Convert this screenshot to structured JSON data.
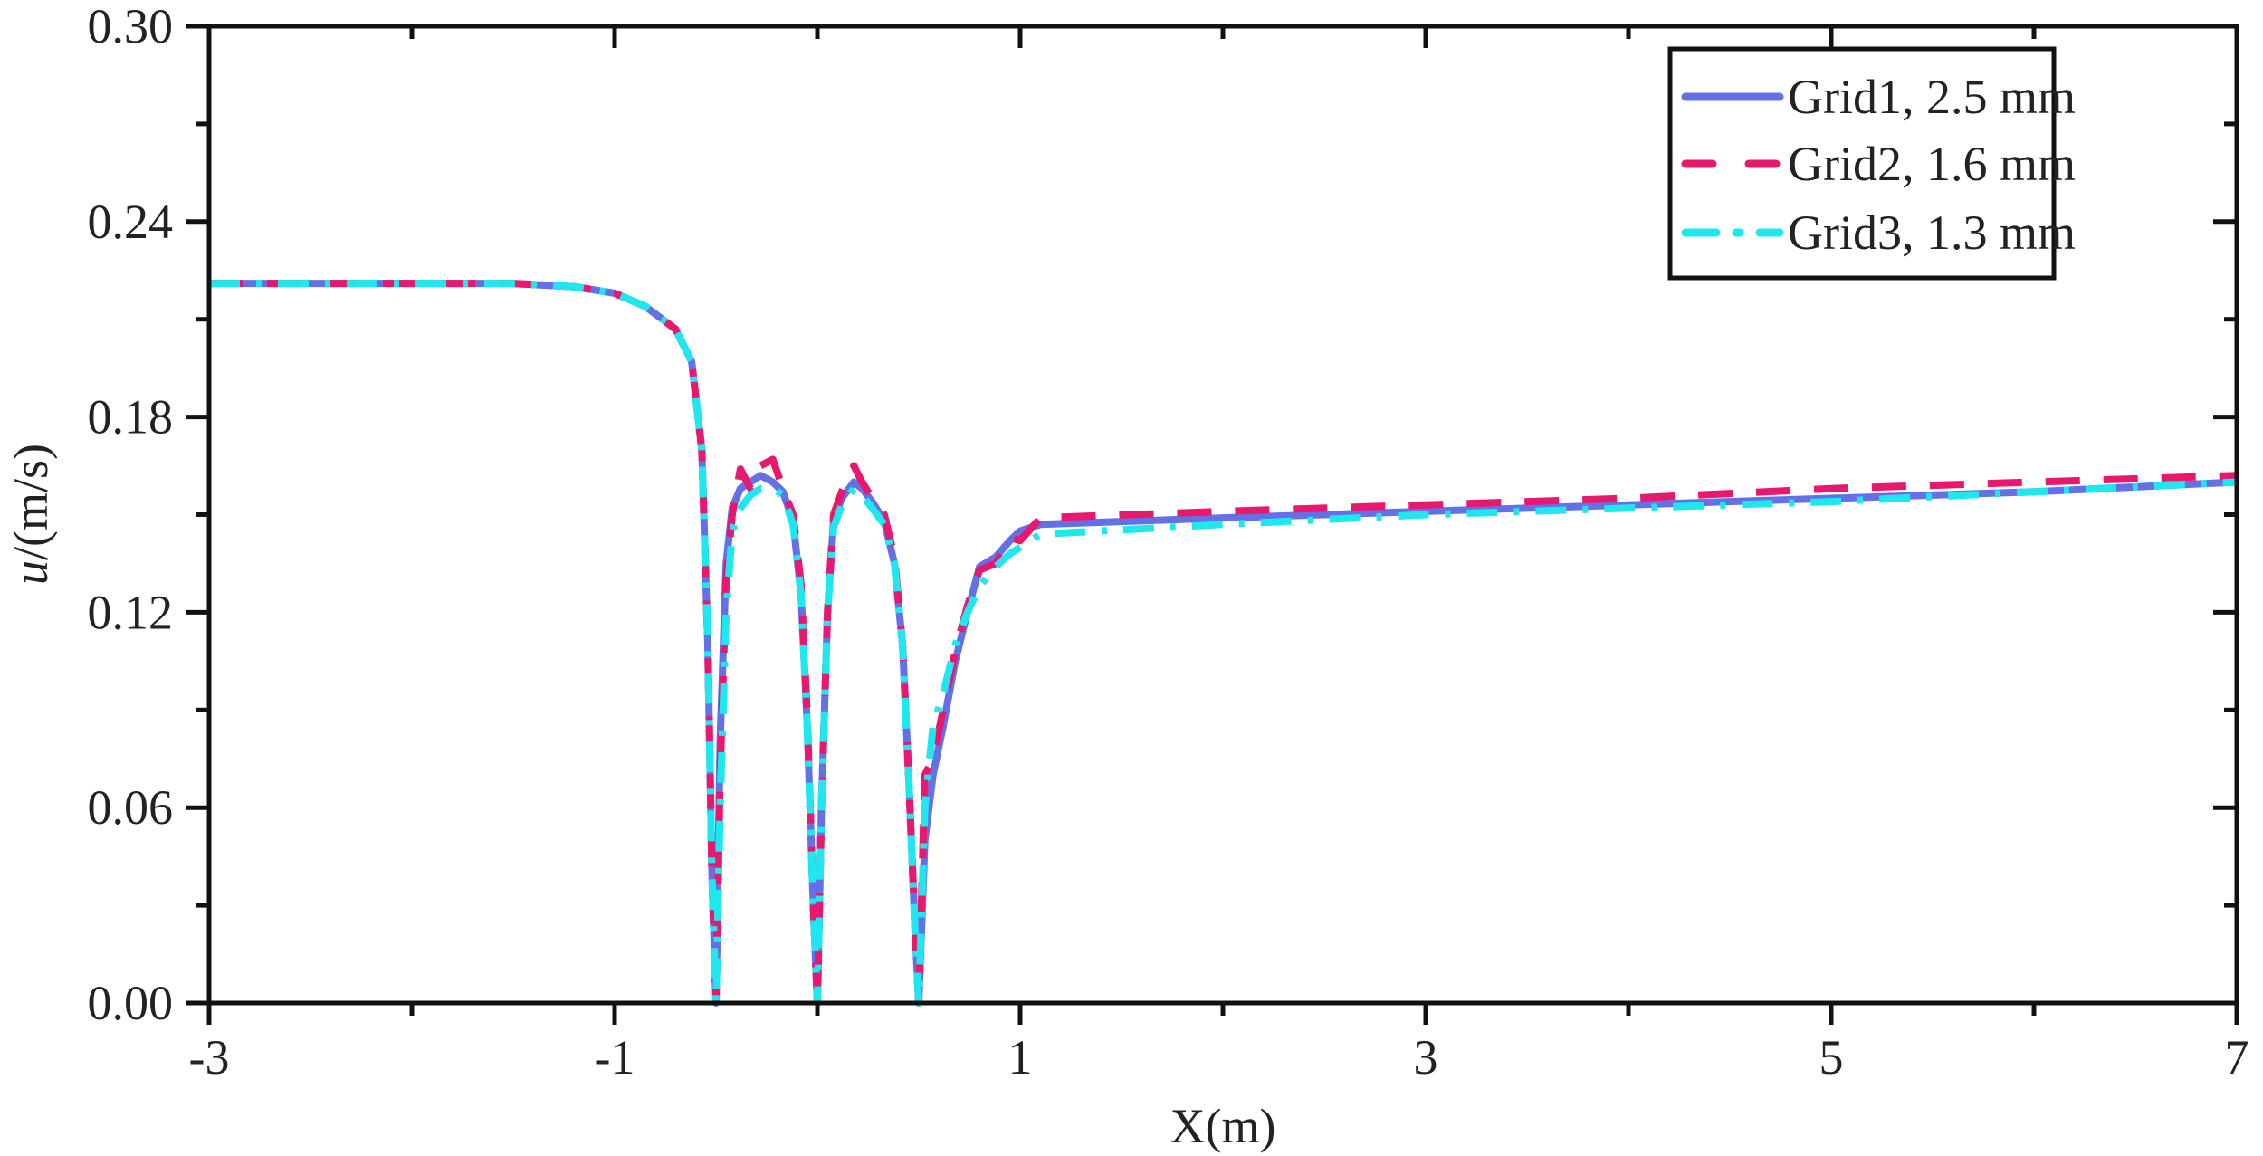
{
  "chart_data": {
    "type": "line",
    "xlabel": "X(m)",
    "ylabel_italic": "u",
    "ylabel_rest": "/(m/s)",
    "xlim": [
      -3,
      7
    ],
    "ylim": [
      0,
      0.3
    ],
    "xticks": [
      "-3",
      "-1",
      "1",
      "3",
      "5",
      "7"
    ],
    "yticks": [
      "0.00",
      "0.06",
      "0.12",
      "0.18",
      "0.24",
      "0.30"
    ],
    "grid": false,
    "legend_position": "top-right",
    "series": [
      {
        "name": "Grid1, 2.5 mm",
        "color": "#6470e6",
        "style": "solid",
        "x": [
          -3,
          -2,
          -1.5,
          -1.2,
          -1,
          -0.85,
          -0.7,
          -0.62,
          -0.57,
          -0.54,
          -0.52,
          -0.5,
          -0.48,
          -0.45,
          -0.42,
          -0.38,
          -0.33,
          -0.28,
          -0.22,
          -0.17,
          -0.12,
          -0.08,
          -0.05,
          -0.02,
          0,
          0.02,
          0.05,
          0.08,
          0.12,
          0.18,
          0.22,
          0.27,
          0.33,
          0.38,
          0.42,
          0.45,
          0.48,
          0.5,
          0.53,
          0.57,
          0.62,
          0.68,
          0.74,
          0.8,
          0.88,
          0.95,
          1.0,
          1.1,
          2,
          3,
          4,
          5,
          6,
          7
        ],
        "y": [
          0.221,
          0.221,
          0.221,
          0.22,
          0.218,
          0.214,
          0.207,
          0.197,
          0.17,
          0.11,
          0.04,
          0.0,
          0.08,
          0.135,
          0.152,
          0.158,
          0.16,
          0.162,
          0.16,
          0.157,
          0.148,
          0.125,
          0.085,
          0.03,
          0.0,
          0.06,
          0.12,
          0.148,
          0.155,
          0.16,
          0.158,
          0.154,
          0.148,
          0.135,
          0.11,
          0.07,
          0.025,
          0.0,
          0.05,
          0.07,
          0.085,
          0.105,
          0.12,
          0.134,
          0.137,
          0.142,
          0.145,
          0.147,
          0.149,
          0.151,
          0.153,
          0.155,
          0.157,
          0.16
        ]
      },
      {
        "name": "Grid2, 1.6 mm",
        "color": "#e8186e",
        "style": "dashed",
        "x": [
          -3,
          -2,
          -1.5,
          -1.2,
          -1,
          -0.85,
          -0.7,
          -0.62,
          -0.57,
          -0.54,
          -0.52,
          -0.5,
          -0.48,
          -0.45,
          -0.42,
          -0.38,
          -0.33,
          -0.28,
          -0.22,
          -0.17,
          -0.12,
          -0.08,
          -0.05,
          -0.02,
          0,
          0.02,
          0.05,
          0.08,
          0.12,
          0.18,
          0.22,
          0.27,
          0.33,
          0.38,
          0.42,
          0.45,
          0.48,
          0.5,
          0.53,
          0.57,
          0.62,
          0.68,
          0.74,
          0.8,
          0.88,
          0.95,
          1.0,
          1.1,
          2,
          3,
          4,
          5,
          6,
          7
        ],
        "y": [
          0.221,
          0.221,
          0.221,
          0.22,
          0.218,
          0.214,
          0.207,
          0.197,
          0.17,
          0.11,
          0.04,
          0.0,
          0.07,
          0.13,
          0.15,
          0.164,
          0.158,
          0.165,
          0.167,
          0.158,
          0.15,
          0.128,
          0.088,
          0.03,
          0.0,
          0.06,
          0.12,
          0.15,
          0.157,
          0.165,
          0.16,
          0.155,
          0.15,
          0.137,
          0.11,
          0.07,
          0.025,
          0.0,
          0.07,
          0.075,
          0.09,
          0.108,
          0.122,
          0.133,
          0.135,
          0.143,
          0.142,
          0.149,
          0.151,
          0.153,
          0.155,
          0.158,
          0.16,
          0.162
        ]
      },
      {
        "name": "Grid3, 1.3 mm",
        "color": "#1ee8ee",
        "style": "dash-dot",
        "x": [
          -3,
          -2,
          -1.5,
          -1.2,
          -1,
          -0.85,
          -0.7,
          -0.62,
          -0.57,
          -0.54,
          -0.52,
          -0.5,
          -0.48,
          -0.45,
          -0.42,
          -0.38,
          -0.33,
          -0.28,
          -0.22,
          -0.17,
          -0.12,
          -0.08,
          -0.05,
          -0.02,
          0,
          0.02,
          0.05,
          0.08,
          0.12,
          0.18,
          0.22,
          0.27,
          0.33,
          0.38,
          0.42,
          0.45,
          0.48,
          0.5,
          0.53,
          0.57,
          0.62,
          0.68,
          0.74,
          0.8,
          0.88,
          0.95,
          1.0,
          1.1,
          2,
          3,
          4,
          5,
          6,
          7
        ],
        "y": [
          0.221,
          0.221,
          0.221,
          0.22,
          0.218,
          0.214,
          0.207,
          0.197,
          0.17,
          0.11,
          0.04,
          0.0,
          0.06,
          0.12,
          0.145,
          0.152,
          0.156,
          0.158,
          0.158,
          0.156,
          0.147,
          0.125,
          0.085,
          0.03,
          0.0,
          0.06,
          0.12,
          0.146,
          0.153,
          0.158,
          0.156,
          0.152,
          0.147,
          0.135,
          0.11,
          0.07,
          0.025,
          0.0,
          0.06,
          0.085,
          0.095,
          0.11,
          0.12,
          0.128,
          0.134,
          0.138,
          0.14,
          0.144,
          0.147,
          0.15,
          0.152,
          0.154,
          0.157,
          0.16
        ]
      }
    ]
  }
}
